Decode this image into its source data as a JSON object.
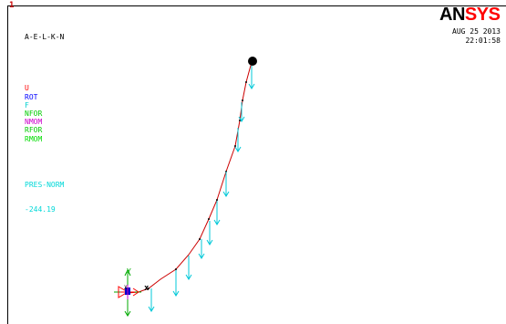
{
  "window": {
    "number": "1",
    "title": "A-E-L-K-N"
  },
  "legend": {
    "items": [
      {
        "label": "U",
        "color": "#ff0000"
      },
      {
        "label": "ROT",
        "color": "#0000ff"
      },
      {
        "label": "F",
        "color": "#00d0d0"
      },
      {
        "label": "NFOR",
        "color": "#00cc00"
      },
      {
        "label": "NMOM",
        "color": "#cc00cc"
      },
      {
        "label": "RFOR",
        "color": "#00cc00"
      },
      {
        "label": "RMOM",
        "color": "#00dd00"
      }
    ],
    "pressure_label": "PRES-NORM",
    "pressure_value": "-244.19",
    "pressure_color": "#00d8d8"
  },
  "logo": {
    "part1": "AN",
    "part2": "SYS",
    "color1": "#000000",
    "color2": "#ff0000"
  },
  "timestamp": {
    "date": "AUG 25 2013",
    "time": "22:01:58"
  },
  "axes": {
    "y_label": "Y",
    "x_marker": "X",
    "origin_label": "X"
  },
  "colors": {
    "beam": "#cc0000",
    "load_arrow": "#00c8d8",
    "axis_y": "#00aa00",
    "triad_red": "#ff0000",
    "triad_blue": "#0000cc"
  }
}
